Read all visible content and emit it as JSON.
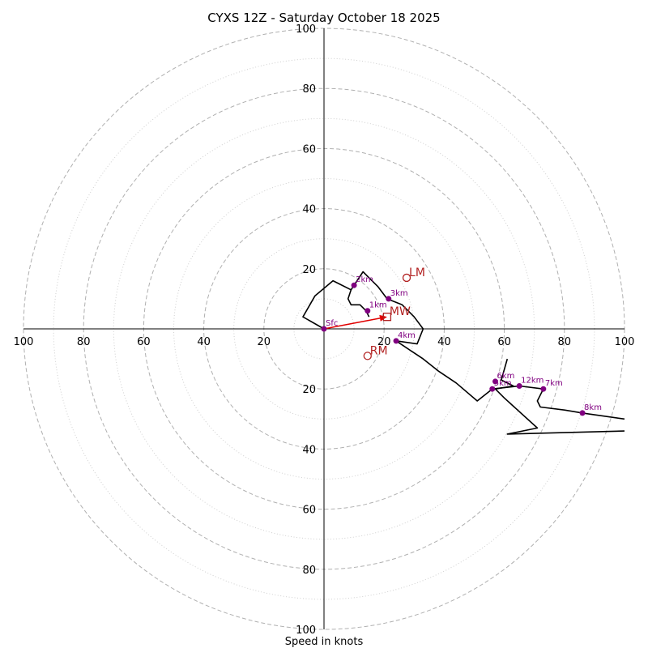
{
  "title": "CYXS 12Z - Saturday October 18 2025",
  "xlabel": "Speed in knots",
  "chart_data": {
    "type": "scatter",
    "title": "CYXS 12Z - Saturday October 18 2025",
    "xlabel": "Speed in knots",
    "ylabel": "",
    "xlim": [
      -100,
      100
    ],
    "ylim": [
      -100,
      100
    ],
    "major_rings": [
      20,
      40,
      60,
      80,
      100
    ],
    "minor_rings": [
      10,
      30,
      50,
      70,
      90
    ],
    "tick_values": [
      20,
      40,
      60,
      80,
      100
    ],
    "hodograph_path": [
      [
        0,
        0
      ],
      [
        -7,
        4
      ],
      [
        -3,
        11
      ],
      [
        3,
        16
      ],
      [
        5,
        15
      ],
      [
        9,
        13
      ],
      [
        13,
        19
      ],
      [
        15,
        17
      ],
      [
        18,
        14
      ],
      [
        21,
        10
      ],
      [
        26,
        8
      ],
      [
        30,
        4
      ],
      [
        33,
        0
      ],
      [
        31,
        -5
      ],
      [
        24,
        -4
      ],
      [
        27,
        -6
      ],
      [
        33,
        -10
      ],
      [
        38,
        -14
      ],
      [
        44,
        -18
      ],
      [
        51,
        -24
      ],
      [
        56,
        -20
      ],
      [
        65,
        -19
      ],
      [
        73,
        -20
      ],
      [
        71,
        -24
      ],
      [
        72,
        -26
      ],
      [
        80,
        -27
      ],
      [
        86,
        -28
      ],
      [
        100,
        -30
      ]
    ],
    "upper_path": [
      [
        100,
        -34
      ],
      [
        61,
        -35
      ],
      [
        71,
        -33
      ],
      [
        60,
        -23
      ],
      [
        57,
        -20
      ],
      [
        63,
        -19
      ],
      [
        59,
        -17
      ],
      [
        61,
        -10
      ]
    ],
    "inner_loop": [
      [
        9,
        13
      ],
      [
        8,
        10
      ],
      [
        9,
        8
      ],
      [
        12,
        8
      ],
      [
        14,
        6
      ],
      [
        15,
        4
      ]
    ],
    "height_points": [
      {
        "label": "Sfc",
        "u": 0,
        "v": 0
      },
      {
        "label": "1km",
        "u": 14.5,
        "v": 6
      },
      {
        "label": "2km",
        "u": 10,
        "v": 14.5
      },
      {
        "label": "3km",
        "u": 21.5,
        "v": 10
      },
      {
        "label": "4km",
        "u": 24,
        "v": -4
      },
      {
        "label": "5km",
        "u": 56,
        "v": -20
      },
      {
        "label": "6km",
        "u": 57,
        "v": -17.5
      },
      {
        "label": "7km",
        "u": 73,
        "v": -20
      },
      {
        "label": "8km",
        "u": 86,
        "v": -28
      },
      {
        "label": "12km",
        "u": 65,
        "v": -19
      }
    ],
    "storm_motion": [
      {
        "label": "LM",
        "u": 27.5,
        "v": 17,
        "marker": "circle"
      },
      {
        "label": "MW",
        "u": 21,
        "v": 4,
        "marker": "square"
      },
      {
        "label": "RM",
        "u": 14.5,
        "v": -9,
        "marker": "circle"
      }
    ],
    "mean_wind_vector": {
      "u": 21,
      "v": 4
    }
  }
}
